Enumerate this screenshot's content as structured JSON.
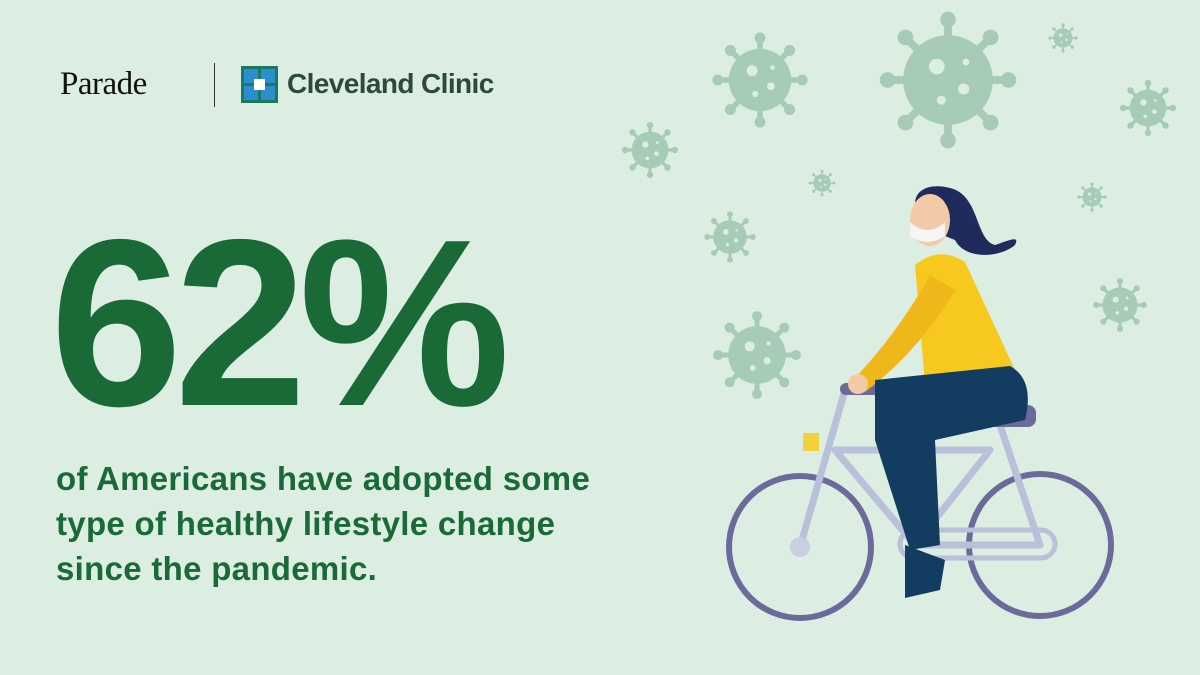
{
  "header": {
    "brand": "Parade",
    "partner": "Cleveland Clinic"
  },
  "stat": {
    "value": "62%",
    "caption": "of Americans have adopted some type of healthy lifestyle change since the pandemic."
  }
}
